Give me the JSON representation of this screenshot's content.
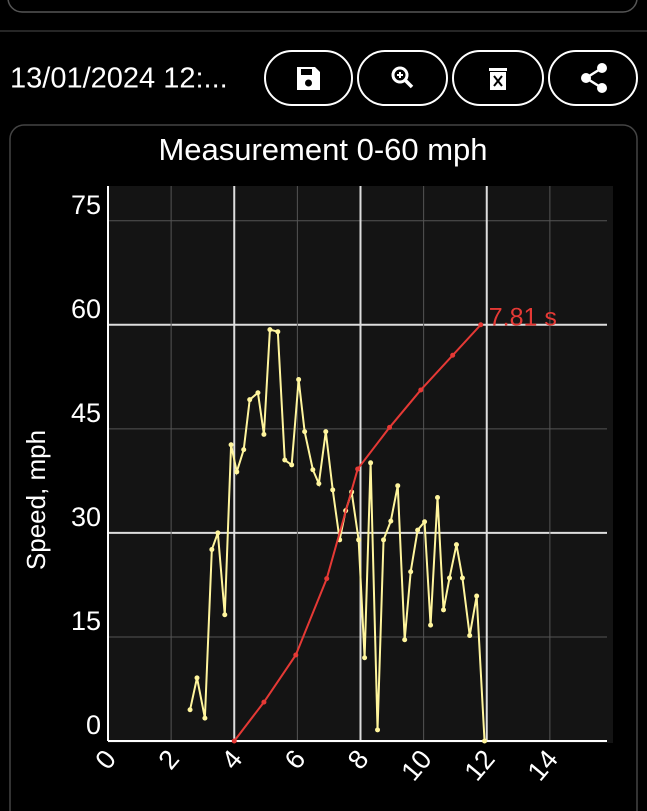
{
  "toolbar": {
    "date": "13/01/2024 12:..."
  },
  "chart_data": {
    "type": "line",
    "title": "Measurement 0-60 mph",
    "y_label": "Speed, mph",
    "annotation": "7.81 s",
    "xlim": [
      0,
      16
    ],
    "xticks": [
      0,
      2,
      4,
      6,
      8,
      10,
      12,
      14
    ],
    "ylim": [
      0,
      80
    ],
    "yticks": [
      0,
      15,
      30,
      45,
      60,
      75
    ],
    "grid": true,
    "series": [
      {
        "color": "#fff59d",
        "x": [
          2.6,
          2.82,
          3.07,
          3.29,
          3.48,
          3.7,
          3.9,
          4.08,
          4.3,
          4.49,
          4.75,
          4.94,
          5.13,
          5.38,
          5.6,
          5.82,
          6.04,
          6.23,
          6.49,
          6.68,
          6.9,
          7.12,
          7.34,
          7.53,
          7.72,
          7.94,
          8.13,
          8.32,
          8.54,
          8.73,
          8.96,
          9.18,
          9.4,
          9.59,
          9.81,
          10.03,
          10.22,
          10.44,
          10.63,
          10.82,
          11.04,
          11.23,
          11.46,
          11.68,
          11.93
        ],
        "values": [
          4.5,
          9.1,
          3.3,
          27.6,
          30,
          18.2,
          42.7,
          38.8,
          42,
          49.2,
          50.2,
          44.2,
          59.3,
          59,
          40.5,
          39.8,
          52.1,
          44.6,
          39.1,
          37.1,
          44.6,
          36.2,
          29,
          33.2,
          35.9,
          29,
          12,
          40.1,
          1.6,
          29,
          31.7,
          36.8,
          14.6,
          24.4,
          30.4,
          31.6,
          16.7,
          35.1,
          18.9,
          23.5,
          28.3,
          23.5,
          15.2,
          20.9,
          0
        ]
      },
      {
        "color": "#e53935",
        "x": [
          4,
          4.94,
          5.95,
          6.93,
          7.91,
          8.92,
          9.91,
          10.92,
          11.81
        ],
        "values": [
          0,
          5.6,
          12.4,
          23.4,
          39.2,
          45.2,
          50.6,
          55.6,
          60
        ]
      }
    ]
  }
}
